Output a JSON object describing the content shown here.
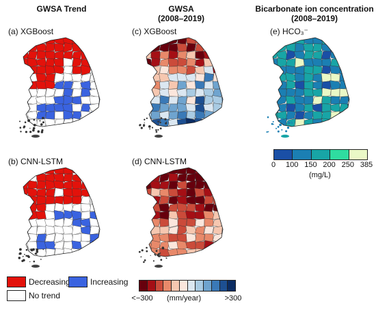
{
  "columns": {
    "trend": "GWSA Trend",
    "gwsa_line1": "GWSA",
    "gwsa_line2": "(2008–2019)",
    "hco3_line1": "Bicarbonate ion concentration",
    "hco3_line2": "(2008–2019)"
  },
  "panels": {
    "a": "(a) XGBoost",
    "b": "(b) CNN-LSTM",
    "c": "(c) XGBoost",
    "d": "(d) CNN-LSTM",
    "e": "(e) HCO₃⁻"
  },
  "trend_legend": {
    "decreasing": "Decreasing",
    "increasing": "Increasing",
    "no_trend": "No trend",
    "colors": {
      "decreasing": "#e3120b",
      "increasing": "#3a63e0",
      "no_trend": "#ffffff"
    }
  },
  "gwsa_legend": {
    "min_label": "<−300",
    "max_label": ">300",
    "unit": "(mm/year)",
    "colors": [
      "#67000d",
      "#a50f15",
      "#cb4b3a",
      "#e8896a",
      "#f6c7b0",
      "#fbe6dc",
      "#dbe7f1",
      "#a9cbe3",
      "#6fa4cf",
      "#3a79b7",
      "#1d4f91",
      "#0b2c63"
    ]
  },
  "hco3_legend": {
    "ticks": [
      "0",
      "100",
      "150",
      "200",
      "250",
      "385"
    ],
    "unit": "(mg/L)",
    "colors": [
      "#1a4fa6",
      "#1b7fb3",
      "#18a5a6",
      "#2fdca0",
      "#eaf8c6"
    ]
  }
}
